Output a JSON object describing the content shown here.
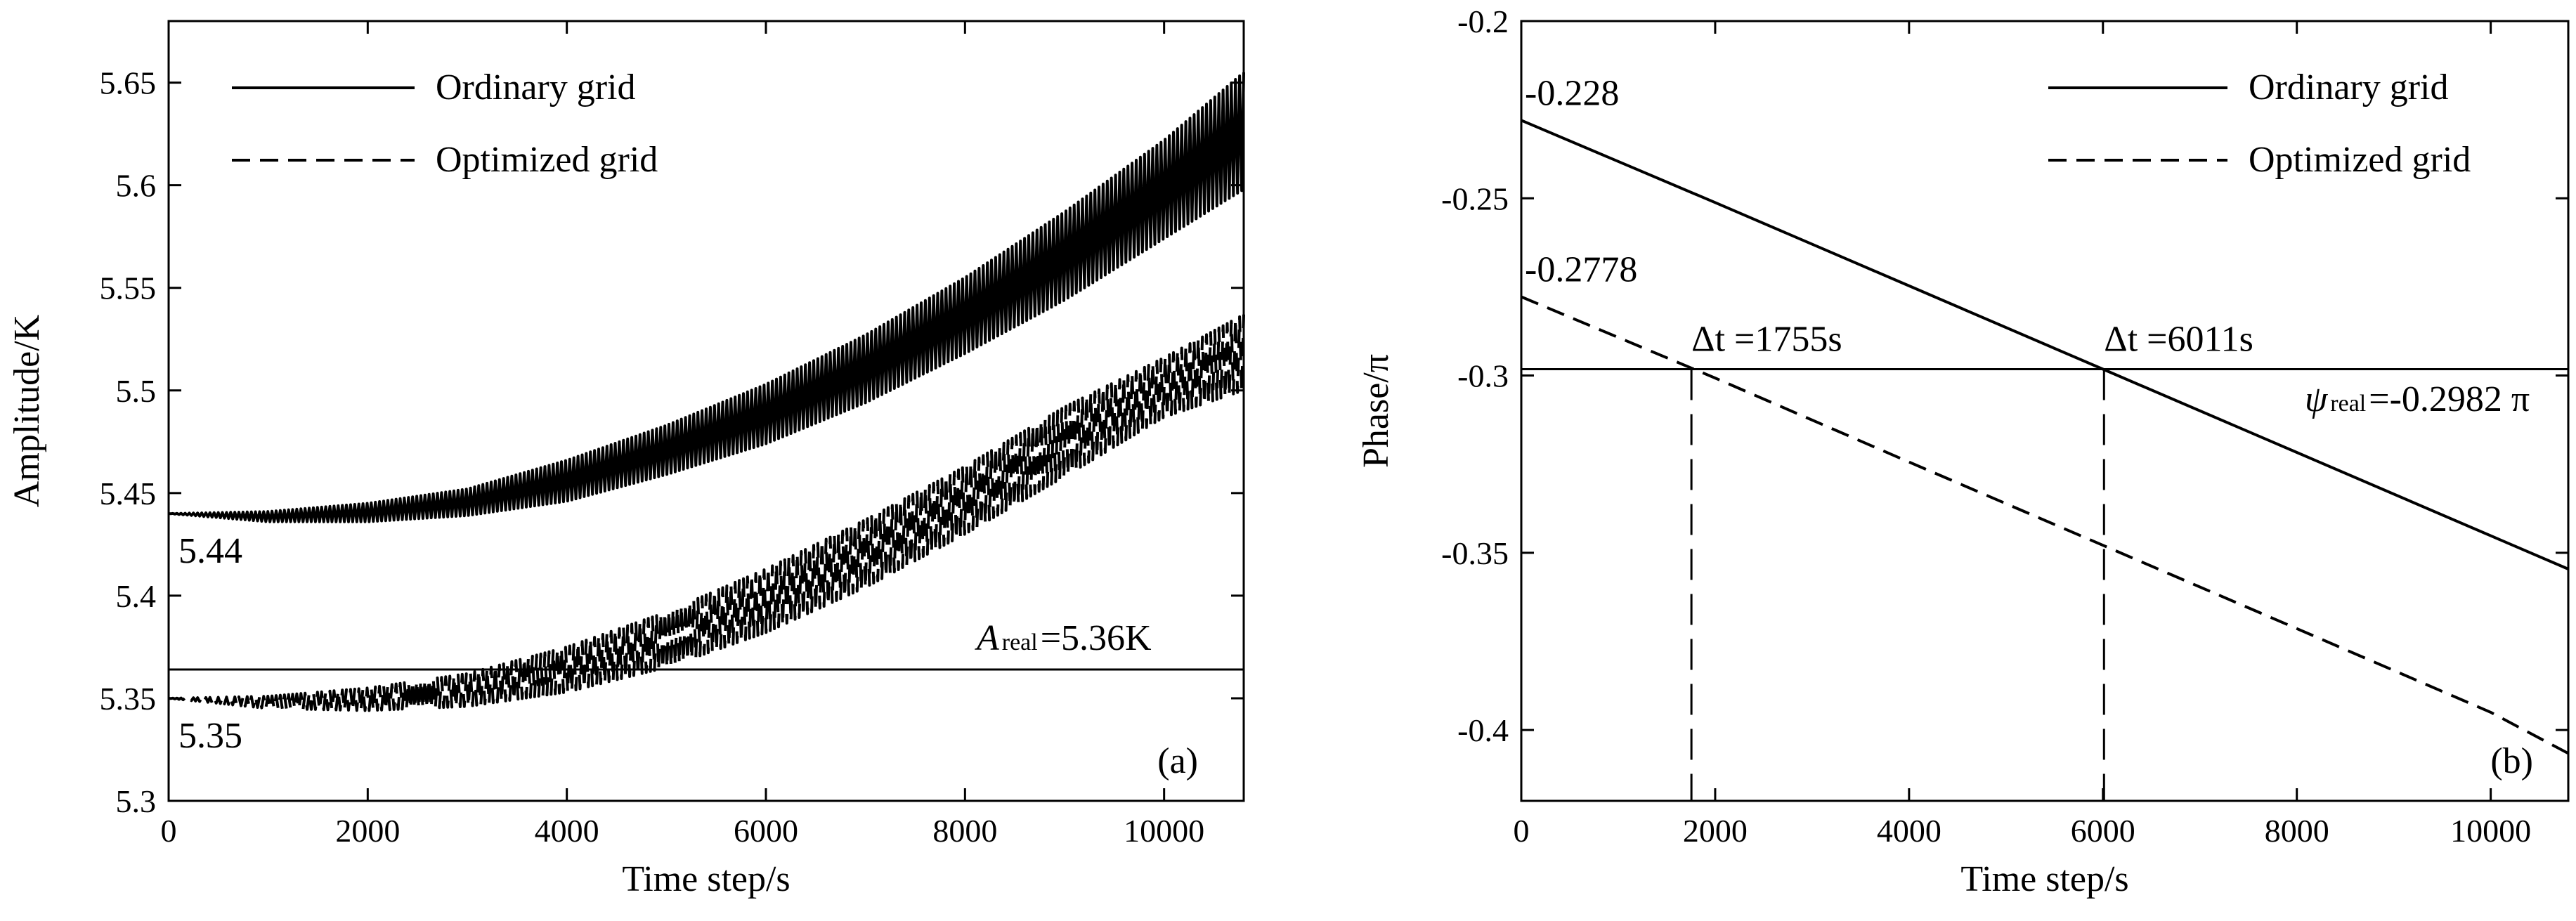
{
  "chart_data": [
    {
      "type": "line",
      "panel_label": "(a)",
      "xlabel": "Time step/s",
      "ylabel": "Amplitude/K",
      "xlim": [
        0,
        10800
      ],
      "ylim": [
        5.3,
        5.68
      ],
      "xticks": [
        0,
        2000,
        4000,
        6000,
        8000,
        10000
      ],
      "xtick_labels": [
        "0",
        "2000",
        "4000",
        "6000",
        "8000",
        "10000"
      ],
      "yticks": [
        5.3,
        5.35,
        5.4,
        5.45,
        5.5,
        5.55,
        5.6,
        5.65
      ],
      "ytick_labels": [
        "5.3",
        "5.35",
        "5.4",
        "5.45",
        "5.5",
        "5.55",
        "5.6",
        "5.65"
      ],
      "legend_position": "top-left",
      "series": [
        {
          "name": "Ordinary grid",
          "style": "solid",
          "x": [
            0,
            1000,
            2000,
            3000,
            4000,
            5000,
            6000,
            7000,
            8000,
            9000,
            10000,
            10800
          ],
          "y_upper": [
            5.44,
            5.441,
            5.445,
            5.452,
            5.466,
            5.483,
            5.503,
            5.527,
            5.555,
            5.587,
            5.622,
            5.655
          ],
          "y_lower": [
            5.44,
            5.436,
            5.436,
            5.439,
            5.446,
            5.459,
            5.474,
            5.494,
            5.518,
            5.544,
            5.574,
            5.598
          ]
        },
        {
          "name": "Optimized grid",
          "style": "dashed",
          "x": [
            0,
            1000,
            2000,
            3000,
            4000,
            5000,
            6000,
            7000,
            8000,
            9000,
            10000,
            10800
          ],
          "y_upper": [
            5.35,
            5.351,
            5.355,
            5.362,
            5.375,
            5.392,
            5.413,
            5.437,
            5.463,
            5.492,
            5.516,
            5.537
          ],
          "y_lower": [
            5.35,
            5.345,
            5.344,
            5.346,
            5.353,
            5.365,
            5.382,
            5.404,
            5.43,
            5.458,
            5.487,
            5.5
          ]
        }
      ],
      "reference_line": {
        "y": 5.364,
        "label_symbol": "A",
        "label_sub": "real",
        "label_rest": "=5.36K"
      },
      "annotations": [
        {
          "text": "5.44",
          "x": 0,
          "y": 5.44
        },
        {
          "text": "5.35",
          "x": 0,
          "y": 5.35
        }
      ]
    },
    {
      "type": "line",
      "panel_label": "(b)",
      "xlabel": "Time step/s",
      "ylabel": "Phase/π",
      "xlim": [
        0,
        10800
      ],
      "ylim": [
        -0.42,
        -0.2
      ],
      "xticks": [
        0,
        2000,
        4000,
        6000,
        8000,
        10000
      ],
      "xtick_labels": [
        "0",
        "2000",
        "4000",
        "6000",
        "8000",
        "10000"
      ],
      "yticks": [
        -0.4,
        -0.35,
        -0.3,
        -0.25,
        -0.2
      ],
      "ytick_labels": [
        "-0.4",
        "-0.35",
        "-0.3",
        "-0.25",
        "-0.2"
      ],
      "legend_position": "top-right",
      "series": [
        {
          "name": "Ordinary grid",
          "style": "solid",
          "x": [
            0,
            2000,
            4000,
            6000,
            8000,
            10000,
            10800
          ],
          "y": [
            -0.228,
            -0.2512,
            -0.2747,
            -0.2982,
            -0.3217,
            -0.3452,
            -0.3546
          ]
        },
        {
          "name": "Optimized grid",
          "style": "dashed",
          "x": [
            0,
            2000,
            4000,
            6000,
            8000,
            10000,
            10800
          ],
          "y": [
            -0.2778,
            -0.3007,
            -0.3244,
            -0.3479,
            -0.3714,
            -0.395,
            -0.4066
          ]
        }
      ],
      "reference_line": {
        "y": -0.2982,
        "label_symbol": "ψ",
        "label_sub": "real",
        "label_rest": "=-0.2982 π"
      },
      "vertical_markers": [
        {
          "x": 1755,
          "label": "Δt =1755s"
        },
        {
          "x": 6011,
          "label": "Δt =6011s"
        }
      ],
      "annotations": [
        {
          "text": "-0.228",
          "x": 0,
          "y": -0.228
        },
        {
          "text": "-0.2778",
          "x": 0,
          "y": -0.2778
        }
      ]
    }
  ]
}
